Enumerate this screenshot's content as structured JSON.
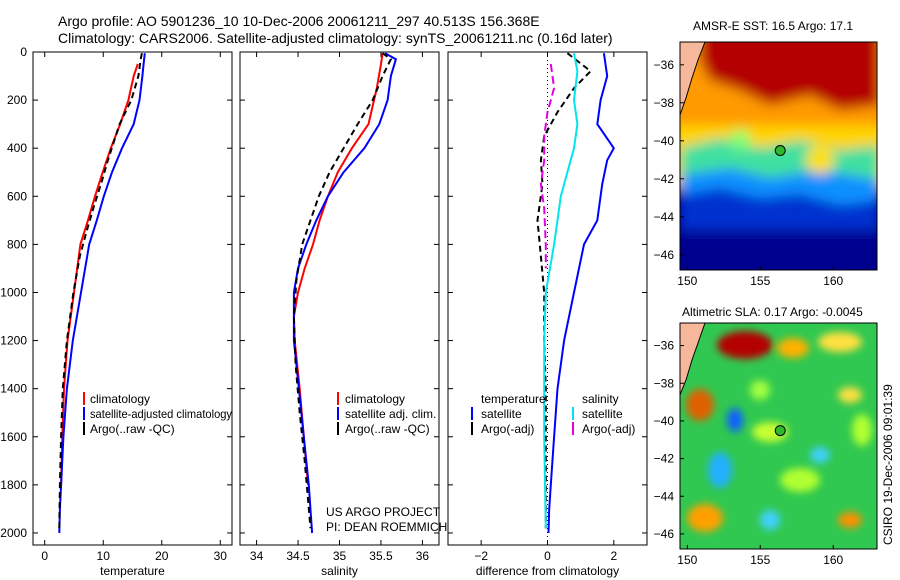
{
  "header": {
    "line1": "Argo profile: AO 5901236_10 10-Dec-2006 20061211_297 40.513S 156.368E",
    "line2": "Climatology: CARS2006. Satellite-adjusted climatology: synTS_20061211.nc (0.16d later)"
  },
  "credits": {
    "project": "US ARGO PROJECT",
    "pi": "PI: DEAN ROEMMICH",
    "stamp": "CSIRO 19-Dec-2006 09:01:39"
  },
  "colors": {
    "climatology": "#ff0000",
    "satellite": "#0000ff",
    "argo": "#000000",
    "sal_satellite": "#00e5ee",
    "sal_argo": "#e000e0"
  },
  "chart_data": [
    {
      "type": "line",
      "id": "temperature",
      "xlabel": "temperature",
      "ylabel": "",
      "xlim": [
        -2,
        32
      ],
      "ylim": [
        2050,
        0
      ],
      "xticks": [
        0,
        10,
        20,
        30
      ],
      "yticks": [
        0,
        200,
        400,
        600,
        800,
        1000,
        1200,
        1400,
        1600,
        1800,
        2000
      ],
      "legend": [
        "climatology",
        "satellite-adjusted climatology",
        "Argo(..raw -QC)"
      ],
      "series": [
        {
          "name": "climatology",
          "color": "#ff0000",
          "dash": "",
          "x": [
            15.9,
            15.2,
            14.3,
            12.9,
            11.3,
            9.9,
            8.6,
            7.4,
            6.1,
            5.0,
            3.9,
            3.3,
            3.0,
            2.8
          ],
          "y": [
            50,
            100,
            200,
            300,
            400,
            500,
            600,
            700,
            800,
            1000,
            1200,
            1400,
            1600,
            1800
          ]
        },
        {
          "name": "satellite-adjusted climatology",
          "color": "#0000ff",
          "dash": "",
          "x": [
            17.1,
            16.9,
            16.7,
            16.2,
            15.2,
            13.2,
            11.5,
            10.1,
            8.9,
            7.6,
            6.2,
            4.8,
            3.8,
            3.2,
            2.8,
            2.6,
            2.5
          ],
          "y": [
            5,
            50,
            100,
            200,
            300,
            400,
            500,
            600,
            700,
            800,
            1000,
            1200,
            1400,
            1600,
            1800,
            1900,
            2000
          ]
        },
        {
          "name": "Argo(..raw -QC)",
          "color": "#000000",
          "dash": "6,4",
          "x": [
            16.6,
            16.4,
            16.0,
            14.8,
            12.8,
            10.8,
            9.6,
            8.3,
            7.1,
            6.0,
            4.9,
            3.8,
            3.1,
            2.8,
            2.6,
            2.5
          ],
          "y": [
            5,
            30,
            100,
            200,
            300,
            450,
            550,
            650,
            750,
            850,
            1000,
            1200,
            1400,
            1600,
            1800,
            1980
          ]
        }
      ]
    },
    {
      "type": "line",
      "id": "salinity",
      "xlabel": "salinity",
      "ylabel": "",
      "xlim": [
        33.8,
        36.2
      ],
      "ylim": [
        2050,
        0
      ],
      "xticks": [
        34,
        34.5,
        35,
        35.5,
        36
      ],
      "legend": [
        "climatology",
        "satellite adj. clim.",
        "Argo(..raw -QC)"
      ],
      "series": [
        {
          "name": "climatology",
          "color": "#ff0000",
          "dash": "",
          "x": [
            35.52,
            35.5,
            35.45,
            35.35,
            35.15,
            34.98,
            34.86,
            34.76,
            34.68,
            34.58,
            34.5,
            34.45,
            34.46,
            34.52,
            34.57,
            34.62
          ],
          "y": [
            5,
            50,
            150,
            300,
            400,
            500,
            600,
            700,
            800,
            900,
            1000,
            1100,
            1200,
            1400,
            1600,
            1800
          ]
        },
        {
          "name": "satellite adj. clim.",
          "color": "#0000ff",
          "dash": "",
          "x": [
            35.55,
            35.68,
            35.62,
            35.58,
            35.48,
            35.3,
            35.05,
            34.86,
            34.72,
            34.6,
            34.5,
            34.45,
            34.45,
            34.51,
            34.57,
            34.63,
            34.67
          ],
          "y": [
            5,
            30,
            100,
            200,
            300,
            400,
            500,
            600,
            700,
            800,
            900,
            1000,
            1200,
            1400,
            1600,
            1800,
            2000
          ]
        },
        {
          "name": "Argo(..raw -QC)",
          "color": "#000000",
          "dash": "6,4",
          "x": [
            35.52,
            35.62,
            35.52,
            35.4,
            35.22,
            35.05,
            34.88,
            34.75,
            34.65,
            34.55,
            34.48,
            34.45,
            34.47,
            34.52,
            34.58,
            34.65
          ],
          "y": [
            5,
            30,
            100,
            200,
            300,
            400,
            500,
            600,
            700,
            800,
            950,
            1100,
            1300,
            1500,
            1700,
            1980
          ]
        }
      ]
    },
    {
      "type": "line",
      "id": "difference",
      "xlabel": "difference from climatology",
      "ylabel": "",
      "xlim": [
        -3,
        3
      ],
      "ylim": [
        2050,
        0
      ],
      "xticks": [
        -2,
        0,
        2
      ],
      "legend_groups": [
        {
          "title": "temperature",
          "entries": [
            "satellite",
            "Argo(-adj)"
          ]
        },
        {
          "title": "salinity",
          "entries": [
            "satellite",
            "Argo(-adj)"
          ]
        }
      ],
      "series": [
        {
          "name": "temperature satellite",
          "color": "#0000ff",
          "dash": "",
          "x": [
            1.7,
            1.8,
            1.6,
            1.5,
            2.0,
            1.8,
            1.65,
            1.5,
            1.1,
            0.8,
            0.5,
            0.3,
            0.2,
            0.1,
            0.05,
            0.03
          ],
          "y": [
            5,
            100,
            200,
            300,
            400,
            450,
            550,
            700,
            800,
            1000,
            1200,
            1400,
            1600,
            1800,
            1900,
            2000
          ]
        },
        {
          "name": "temperature Argo(-adj)",
          "color": "#000000",
          "dash": "6,4",
          "x": [
            0.6,
            1.3,
            0.8,
            0.3,
            -0.1,
            -0.2,
            -0.15,
            -0.3,
            -0.2,
            -0.1,
            -0.1,
            -0.05,
            -0.05,
            -0.05
          ],
          "y": [
            5,
            80,
            150,
            250,
            350,
            450,
            550,
            700,
            850,
            1000,
            1200,
            1400,
            1600,
            1980
          ]
        },
        {
          "name": "salinity satellite",
          "color": "#00e5ee",
          "dash": "",
          "x": [
            0.8,
            0.9,
            0.8,
            0.9,
            0.8,
            0.6,
            0.4,
            0.3,
            0.2,
            -0.05,
            -0.1,
            -0.1,
            -0.1,
            -0.05
          ],
          "y": [
            5,
            80,
            200,
            300,
            400,
            500,
            600,
            700,
            800,
            1000,
            1200,
            1400,
            1600,
            1980
          ]
        },
        {
          "name": "salinity Argo(-adj)",
          "color": "#e000e0",
          "dash": "8,4",
          "x": [
            0.1,
            0.2,
            0.0,
            -0.1,
            -0.1,
            -0.2,
            -0.1,
            -0.05,
            -0.05
          ],
          "y": [
            50,
            150,
            250,
            350,
            450,
            550,
            650,
            800,
            900
          ]
        }
      ]
    },
    {
      "type": "heatmap",
      "id": "sst_map",
      "title": "AMSR-E SST: 16.5 Argo: 17.1",
      "xlim": [
        149.5,
        163
      ],
      "ylim": [
        -46.8,
        -34.8
      ],
      "xticks": [
        150,
        155,
        160
      ],
      "yticks": [
        -36,
        -38,
        -40,
        -42,
        -44,
        -46
      ],
      "marker": {
        "lon": 156.368,
        "lat": -40.513
      }
    },
    {
      "type": "heatmap",
      "id": "sla_map",
      "title": "Altimetric SLA: 0.17 Argo: -0.0045",
      "xlim": [
        149.5,
        163
      ],
      "ylim": [
        -46.8,
        -34.8
      ],
      "xticks": [
        150,
        155,
        160
      ],
      "yticks": [
        -36,
        -38,
        -40,
        -42,
        -44,
        -46
      ],
      "marker": {
        "lon": 156.368,
        "lat": -40.513
      }
    }
  ]
}
